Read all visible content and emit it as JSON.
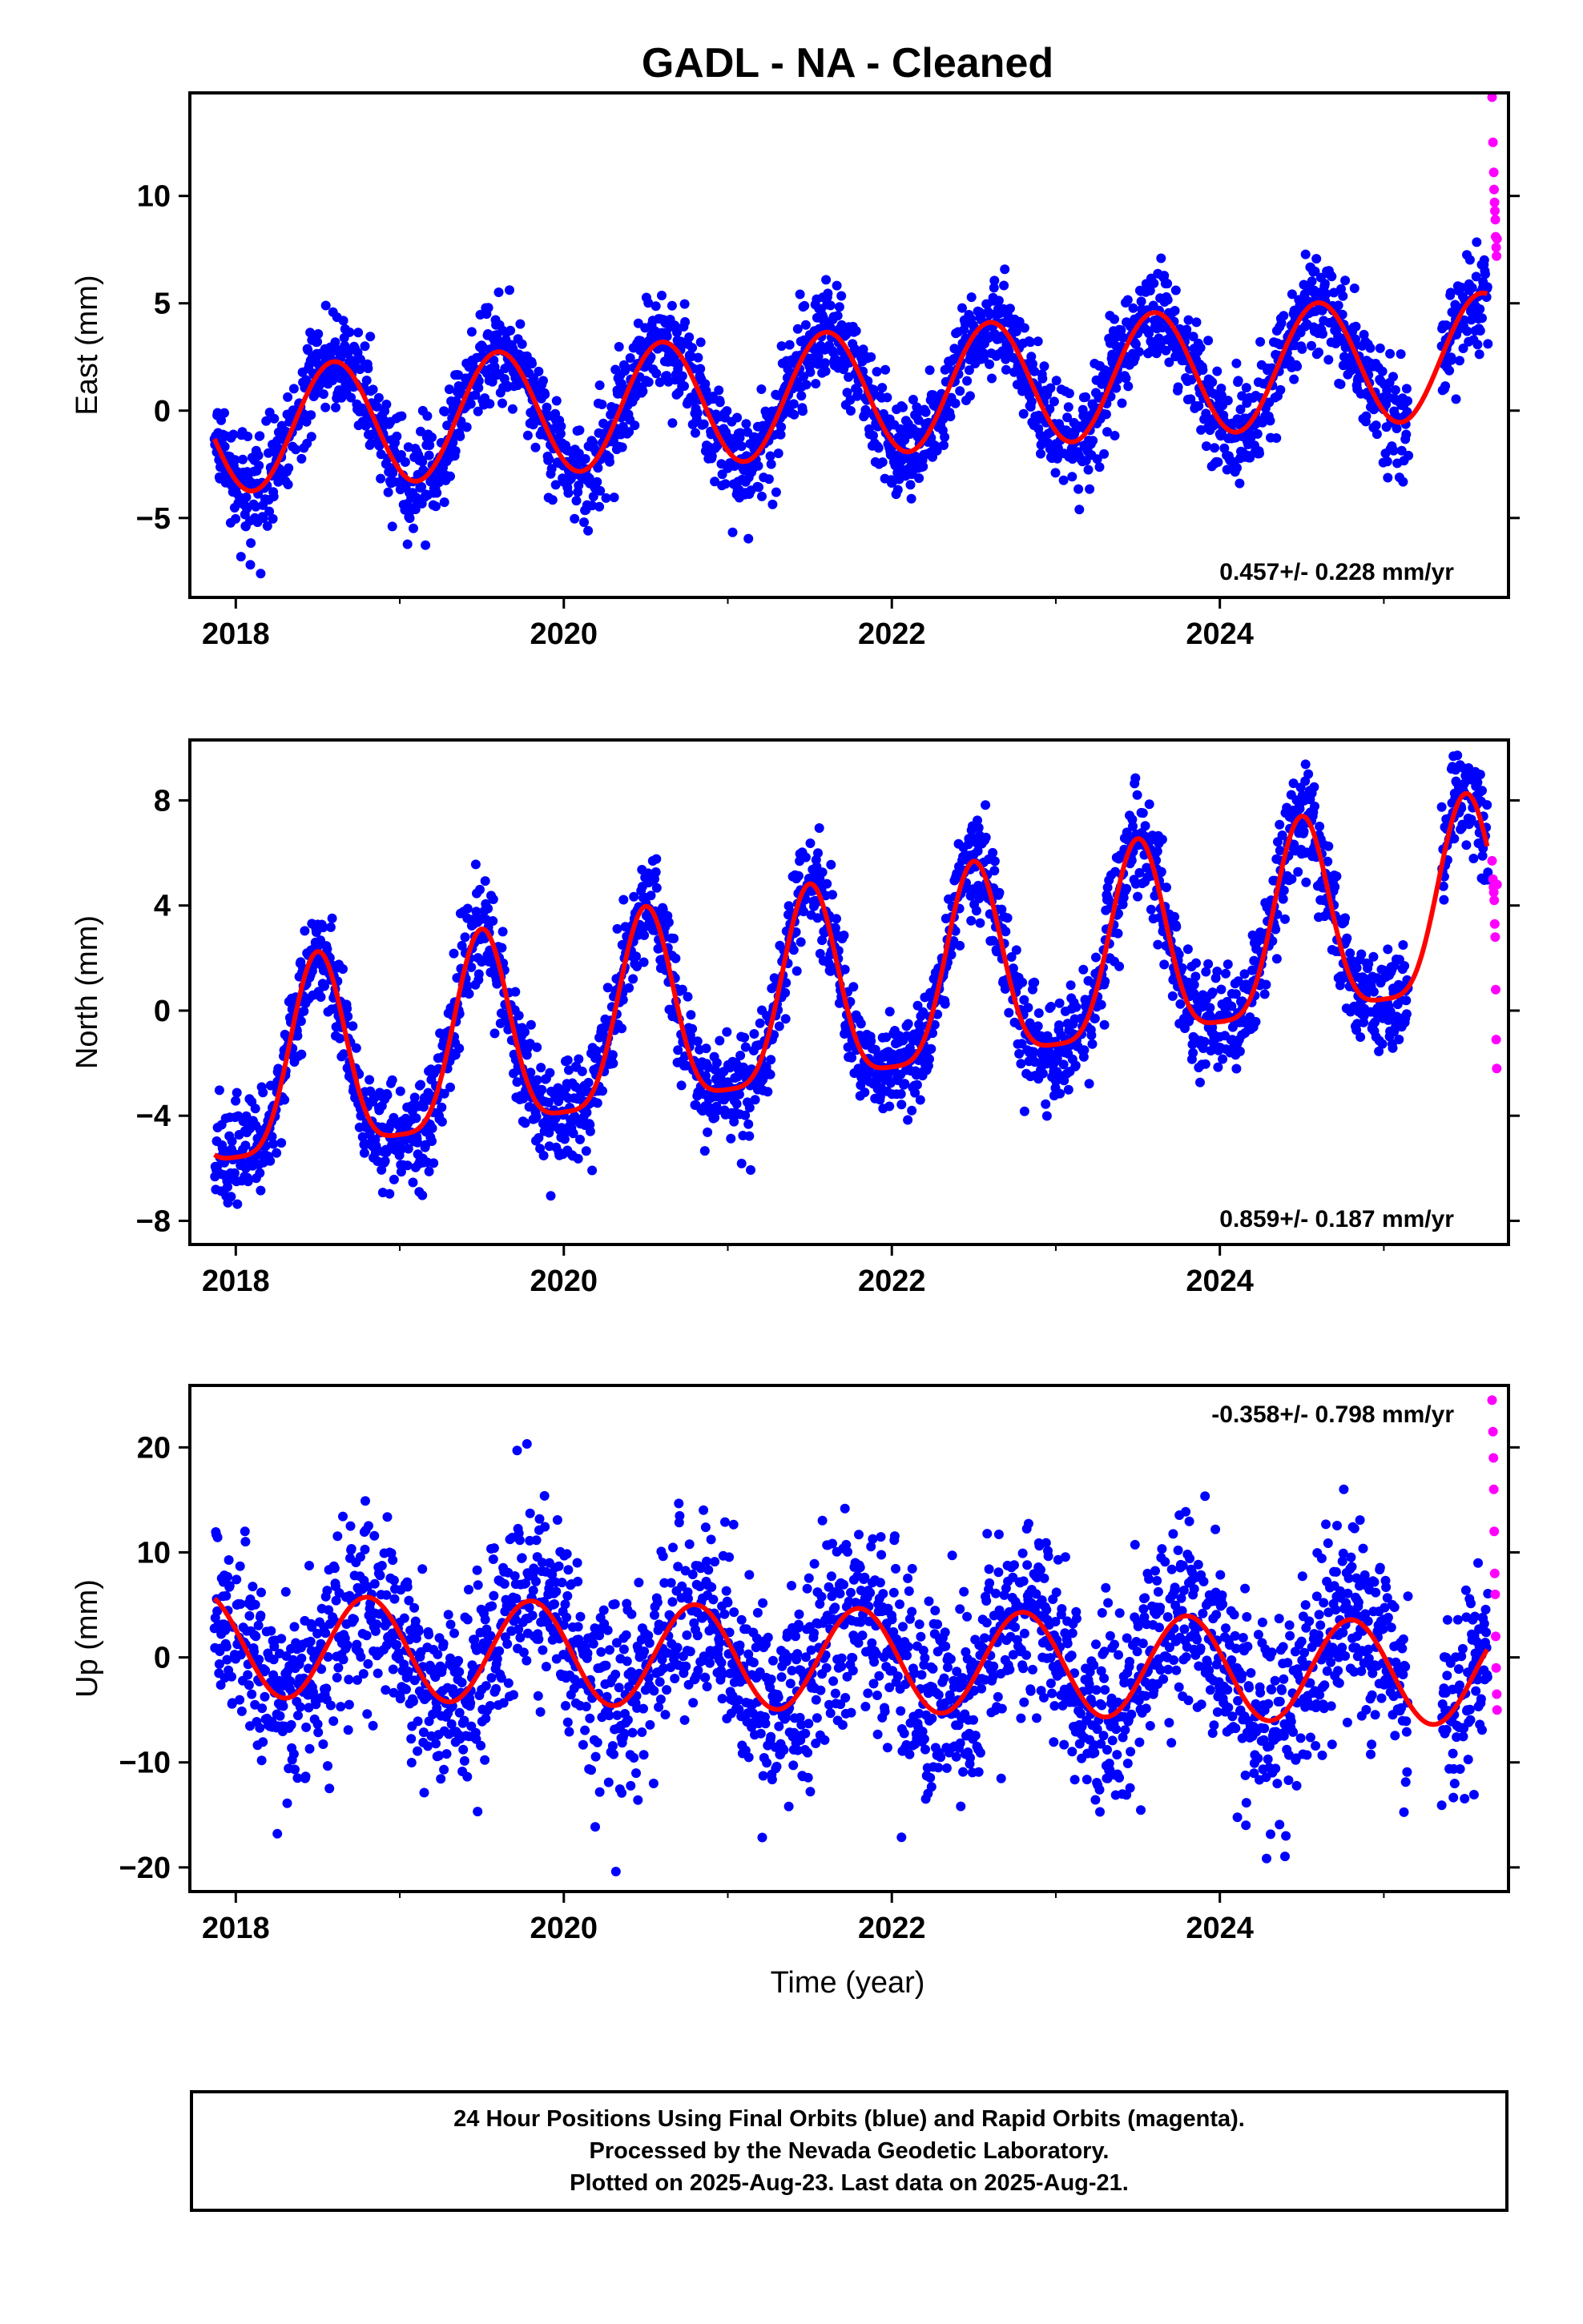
{
  "title": "GADL  - NA - Cleaned",
  "caption": {
    "line1": "24 Hour Positions Using Final Orbits (blue) and Rapid Orbits (magenta).",
    "line2": "Processed by the Nevada Geodetic Laboratory.",
    "line3": "Plotted on 2025-Aug-23. Last data on 2025-Aug-21."
  },
  "colors": {
    "final_orbits": "#0000ff",
    "rapid_orbits": "#ff00ff",
    "model_fit": "#ff0000",
    "frame": "#000000"
  },
  "chart_data": [
    {
      "type": "scatter",
      "id": "east",
      "title": "GADL  - NA - Cleaned",
      "xlabel": "",
      "ylabel": "East (mm)",
      "xlim": [
        2017.72,
        2025.76
      ],
      "ylim": [
        -8.7,
        14.8
      ],
      "x_ticks": [
        2018,
        2020,
        2022,
        2024
      ],
      "x_tick_labels": [
        "2018",
        "2020",
        "2022",
        "2024"
      ],
      "y_ticks": [
        -5,
        0,
        5,
        10
      ],
      "y_tick_labels": [
        "−5",
        "0",
        "5",
        "10"
      ],
      "rate_label": "0.457+/- 0.228 mm/yr",
      "rate_position": "bottom-right",
      "grid": false,
      "data_start": 2017.87,
      "data_end": 2025.635,
      "gap": [
        2025.15,
        2025.35
      ],
      "model": {
        "offset": 0.8,
        "rate_mm_per_yr": 0.457,
        "ref_year": 2021.7,
        "annual_amplitude": 2.9,
        "phase_peak": 2018.6
      },
      "scatter_sd": 1.15,
      "series": [
        {
          "name": "Final Orbits (blue)",
          "color": "#0000ff",
          "kind": "points"
        },
        {
          "name": "Rapid Orbits (magenta)",
          "color": "#ff00ff",
          "kind": "points",
          "x": [
            2025.66,
            2025.665,
            2025.67,
            2025.672,
            2025.675,
            2025.677,
            2025.68,
            2025.682,
            2025.685,
            2025.687,
            2025.69
          ],
          "y": [
            14.6,
            12.5,
            11.1,
            10.3,
            9.7,
            9.3,
            8.9,
            8.1,
            7.6,
            7.2,
            8.0
          ]
        },
        {
          "name": "Model fit",
          "color": "#ff0000",
          "kind": "line"
        }
      ]
    },
    {
      "type": "scatter",
      "id": "north",
      "xlabel": "",
      "ylabel": "North (mm)",
      "xlim": [
        2017.72,
        2025.76
      ],
      "ylim": [
        -8.9,
        10.3
      ],
      "x_ticks": [
        2018,
        2020,
        2022,
        2024
      ],
      "x_tick_labels": [
        "2018",
        "2020",
        "2022",
        "2024"
      ],
      "y_ticks": [
        -8,
        -4,
        0,
        4,
        8
      ],
      "y_tick_labels": [
        "−8",
        "−4",
        "0",
        "4",
        "8"
      ],
      "rate_label": "0.859+/- 0.187 mm/yr",
      "rate_position": "bottom-right",
      "grid": false,
      "data_start": 2017.87,
      "data_end": 2025.635,
      "gap": [
        2025.15,
        2025.35
      ],
      "model": {
        "offset": 0.4,
        "rate_mm_per_yr": 0.859,
        "ref_year": 2021.7,
        "annual_amplitude": 3.7,
        "phase_peak": 2018.5,
        "semiannual_amplitude": 0.9
      },
      "scatter_sd": 1.0,
      "series": [
        {
          "name": "Final Orbits (blue)",
          "color": "#0000ff",
          "kind": "points"
        },
        {
          "name": "Rapid Orbits (magenta)",
          "color": "#ff00ff",
          "kind": "points",
          "x": [
            2025.66,
            2025.665,
            2025.668,
            2025.67,
            2025.673,
            2025.676,
            2025.679,
            2025.682,
            2025.685,
            2025.688,
            2025.69
          ],
          "y": [
            5.7,
            5.0,
            4.7,
            4.5,
            4.2,
            3.3,
            2.8,
            0.8,
            -1.1,
            -2.2,
            4.8
          ]
        },
        {
          "name": "Model fit",
          "color": "#ff0000",
          "kind": "line"
        }
      ]
    },
    {
      "type": "scatter",
      "id": "up",
      "xlabel": "Time (year)",
      "ylabel": "Up (mm)",
      "xlim": [
        2017.72,
        2025.76
      ],
      "ylim": [
        -22.3,
        25.9
      ],
      "x_ticks": [
        2018,
        2020,
        2022,
        2024
      ],
      "x_tick_labels": [
        "2018",
        "2020",
        "2022",
        "2024"
      ],
      "y_ticks": [
        -20,
        -10,
        0,
        10,
        20
      ],
      "y_tick_labels": [
        "−20",
        "−10",
        "0",
        "10",
        "20"
      ],
      "rate_label": "-0.358+/- 0.798 mm/yr",
      "rate_position": "top-right",
      "grid": false,
      "data_start": 2017.87,
      "data_end": 2025.635,
      "gap": [
        2025.15,
        2025.35
      ],
      "model": {
        "offset": -0.2,
        "rate_mm_per_yr": -0.358,
        "ref_year": 2021.7,
        "annual_amplitude": 4.9,
        "phase_peak": 2018.8
      },
      "scatter_sd": 4.6,
      "series": [
        {
          "name": "Final Orbits (blue)",
          "color": "#0000ff",
          "kind": "points"
        },
        {
          "name": "Rapid Orbits (magenta)",
          "color": "#ff00ff",
          "kind": "points",
          "x": [
            2025.66,
            2025.665,
            2025.668,
            2025.67,
            2025.673,
            2025.676,
            2025.679,
            2025.682,
            2025.685,
            2025.688,
            2025.69
          ],
          "y": [
            24.5,
            21.5,
            19.0,
            16.0,
            12.0,
            8.0,
            6.0,
            2.0,
            -1.0,
            -3.5,
            -5.0
          ]
        },
        {
          "name": "Model fit",
          "color": "#ff0000",
          "kind": "line"
        }
      ]
    }
  ]
}
